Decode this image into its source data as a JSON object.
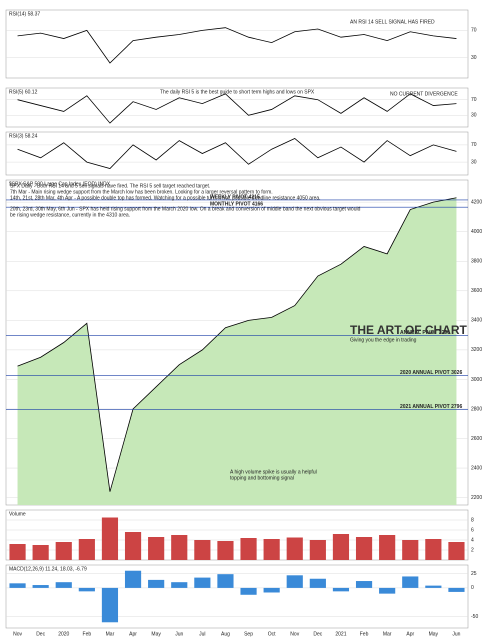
{
  "chart_data": [
    {
      "type": "line",
      "title": "RSI(14) 58.37",
      "annotations": [
        "AN RSI 14 SELL SIGNAL HAS FIRED"
      ],
      "color": "#000000",
      "values": [
        62,
        66,
        58,
        70,
        22,
        55,
        60,
        64,
        70,
        74,
        60,
        52,
        68,
        72,
        60,
        64,
        55,
        68,
        62,
        58
      ],
      "ylim": [
        0,
        100
      ],
      "yticks": [
        30,
        70
      ]
    },
    {
      "type": "line",
      "title": "RSI(5) 60.12",
      "annotations": [
        "The daily RSI 5 is the best guide to short term highs and lows on SPX",
        "NO CURRENT DIVERGENCE"
      ],
      "color": "#000000",
      "values": [
        70,
        55,
        40,
        80,
        10,
        65,
        45,
        75,
        60,
        85,
        30,
        45,
        80,
        70,
        35,
        75,
        40,
        85,
        55,
        60
      ],
      "ylim": [
        0,
        100
      ],
      "yticks": [
        30,
        70
      ]
    },
    {
      "type": "line",
      "title": "RSI(3) 58.24",
      "annotations": [],
      "color": "#000000",
      "values": [
        60,
        40,
        75,
        30,
        15,
        70,
        35,
        80,
        50,
        75,
        25,
        60,
        85,
        40,
        65,
        30,
        80,
        45,
        70,
        55
      ],
      "ylim": [
        0,
        100
      ],
      "yticks": [
        30,
        70
      ]
    },
    {
      "type": "line",
      "title": "$SPX S&P 500 Large Cap Index (EOD) INDX",
      "color": "#000000",
      "area_color": "#c6e8b8",
      "categories": [
        "Nov",
        "Dec",
        "2020",
        "Feb",
        "Mar",
        "Apr",
        "May",
        "Jun",
        "Jul",
        "Aug",
        "Sep",
        "Oct",
        "Nov",
        "Dec",
        "2021",
        "Feb",
        "Mar",
        "Apr",
        "May",
        "Jun"
      ],
      "values": [
        3090,
        3150,
        3250,
        3380,
        2240,
        2800,
        2950,
        3100,
        3200,
        3350,
        3400,
        3420,
        3500,
        3700,
        3780,
        3900,
        3850,
        4150,
        4200,
        4230
      ],
      "ylim": [
        2150,
        4350
      ],
      "yticks": [
        2200,
        2400,
        2600,
        2800,
        3000,
        3200,
        3400,
        3600,
        3800,
        4000,
        4200
      ],
      "annotations": [
        "SPX Daily - Both RSI 14 and 5 sell signals have fired. The RSI 5 sell target reached target.",
        "7th Mar - Main rising wedge support from the March low has been broken. Looking for a larger reversal pattern to form.",
        "14th, 21st, 28th Mar, 4th Apr - A possible double top has formed. Watching for a possible turn. If not, possible trendline resistance 4050 area.",
        "20th, 23rd, 30th May, 6th Jun - SPX has held rising support from the March 2020 low. On a break and conversion of middle band the next obvious target would",
        "be rising wedge resistance, currently in the 4310 area.",
        "THE ART OF CHART",
        "Giving you the edge in trading",
        "A high volume spike is usually a helpful",
        "topping and bottoming signal"
      ],
      "pivots": [
        {
          "label": "WEEKLY PIVOT 4215",
          "value": 4215
        },
        {
          "label": "MONTHLY PIVOT 4166",
          "value": 4166
        },
        {
          "label": "ANNUAL PIVOT 3296",
          "value": 3296
        },
        {
          "label": "2020 ANNUAL PIVOT 3026",
          "value": 3026
        },
        {
          "label": "2021 ANNUAL PIVOT 2796",
          "value": 2796
        }
      ]
    },
    {
      "type": "bar",
      "title": "Volume",
      "color": "#cc4444",
      "values": [
        3.2,
        3.0,
        3.6,
        4.2,
        8.5,
        5.6,
        4.6,
        5.0,
        4.0,
        3.8,
        4.4,
        4.2,
        4.5,
        4.0,
        5.2,
        4.6,
        5.0,
        4.0,
        4.2,
        3.6
      ],
      "ylim": [
        0,
        10
      ],
      "yticks": [
        2,
        4,
        6,
        8
      ]
    },
    {
      "type": "bar",
      "title": "MACD(12,26,9) 11.24, 18.03, -6.79",
      "color": "#3a8ad8",
      "values": [
        8,
        5,
        10,
        -6,
        -60,
        30,
        14,
        10,
        18,
        24,
        -12,
        -8,
        22,
        16,
        -6,
        12,
        -10,
        20,
        4,
        -7
      ],
      "ylim": [
        -70,
        40
      ],
      "yticks": [
        -50,
        0,
        25
      ]
    }
  ]
}
